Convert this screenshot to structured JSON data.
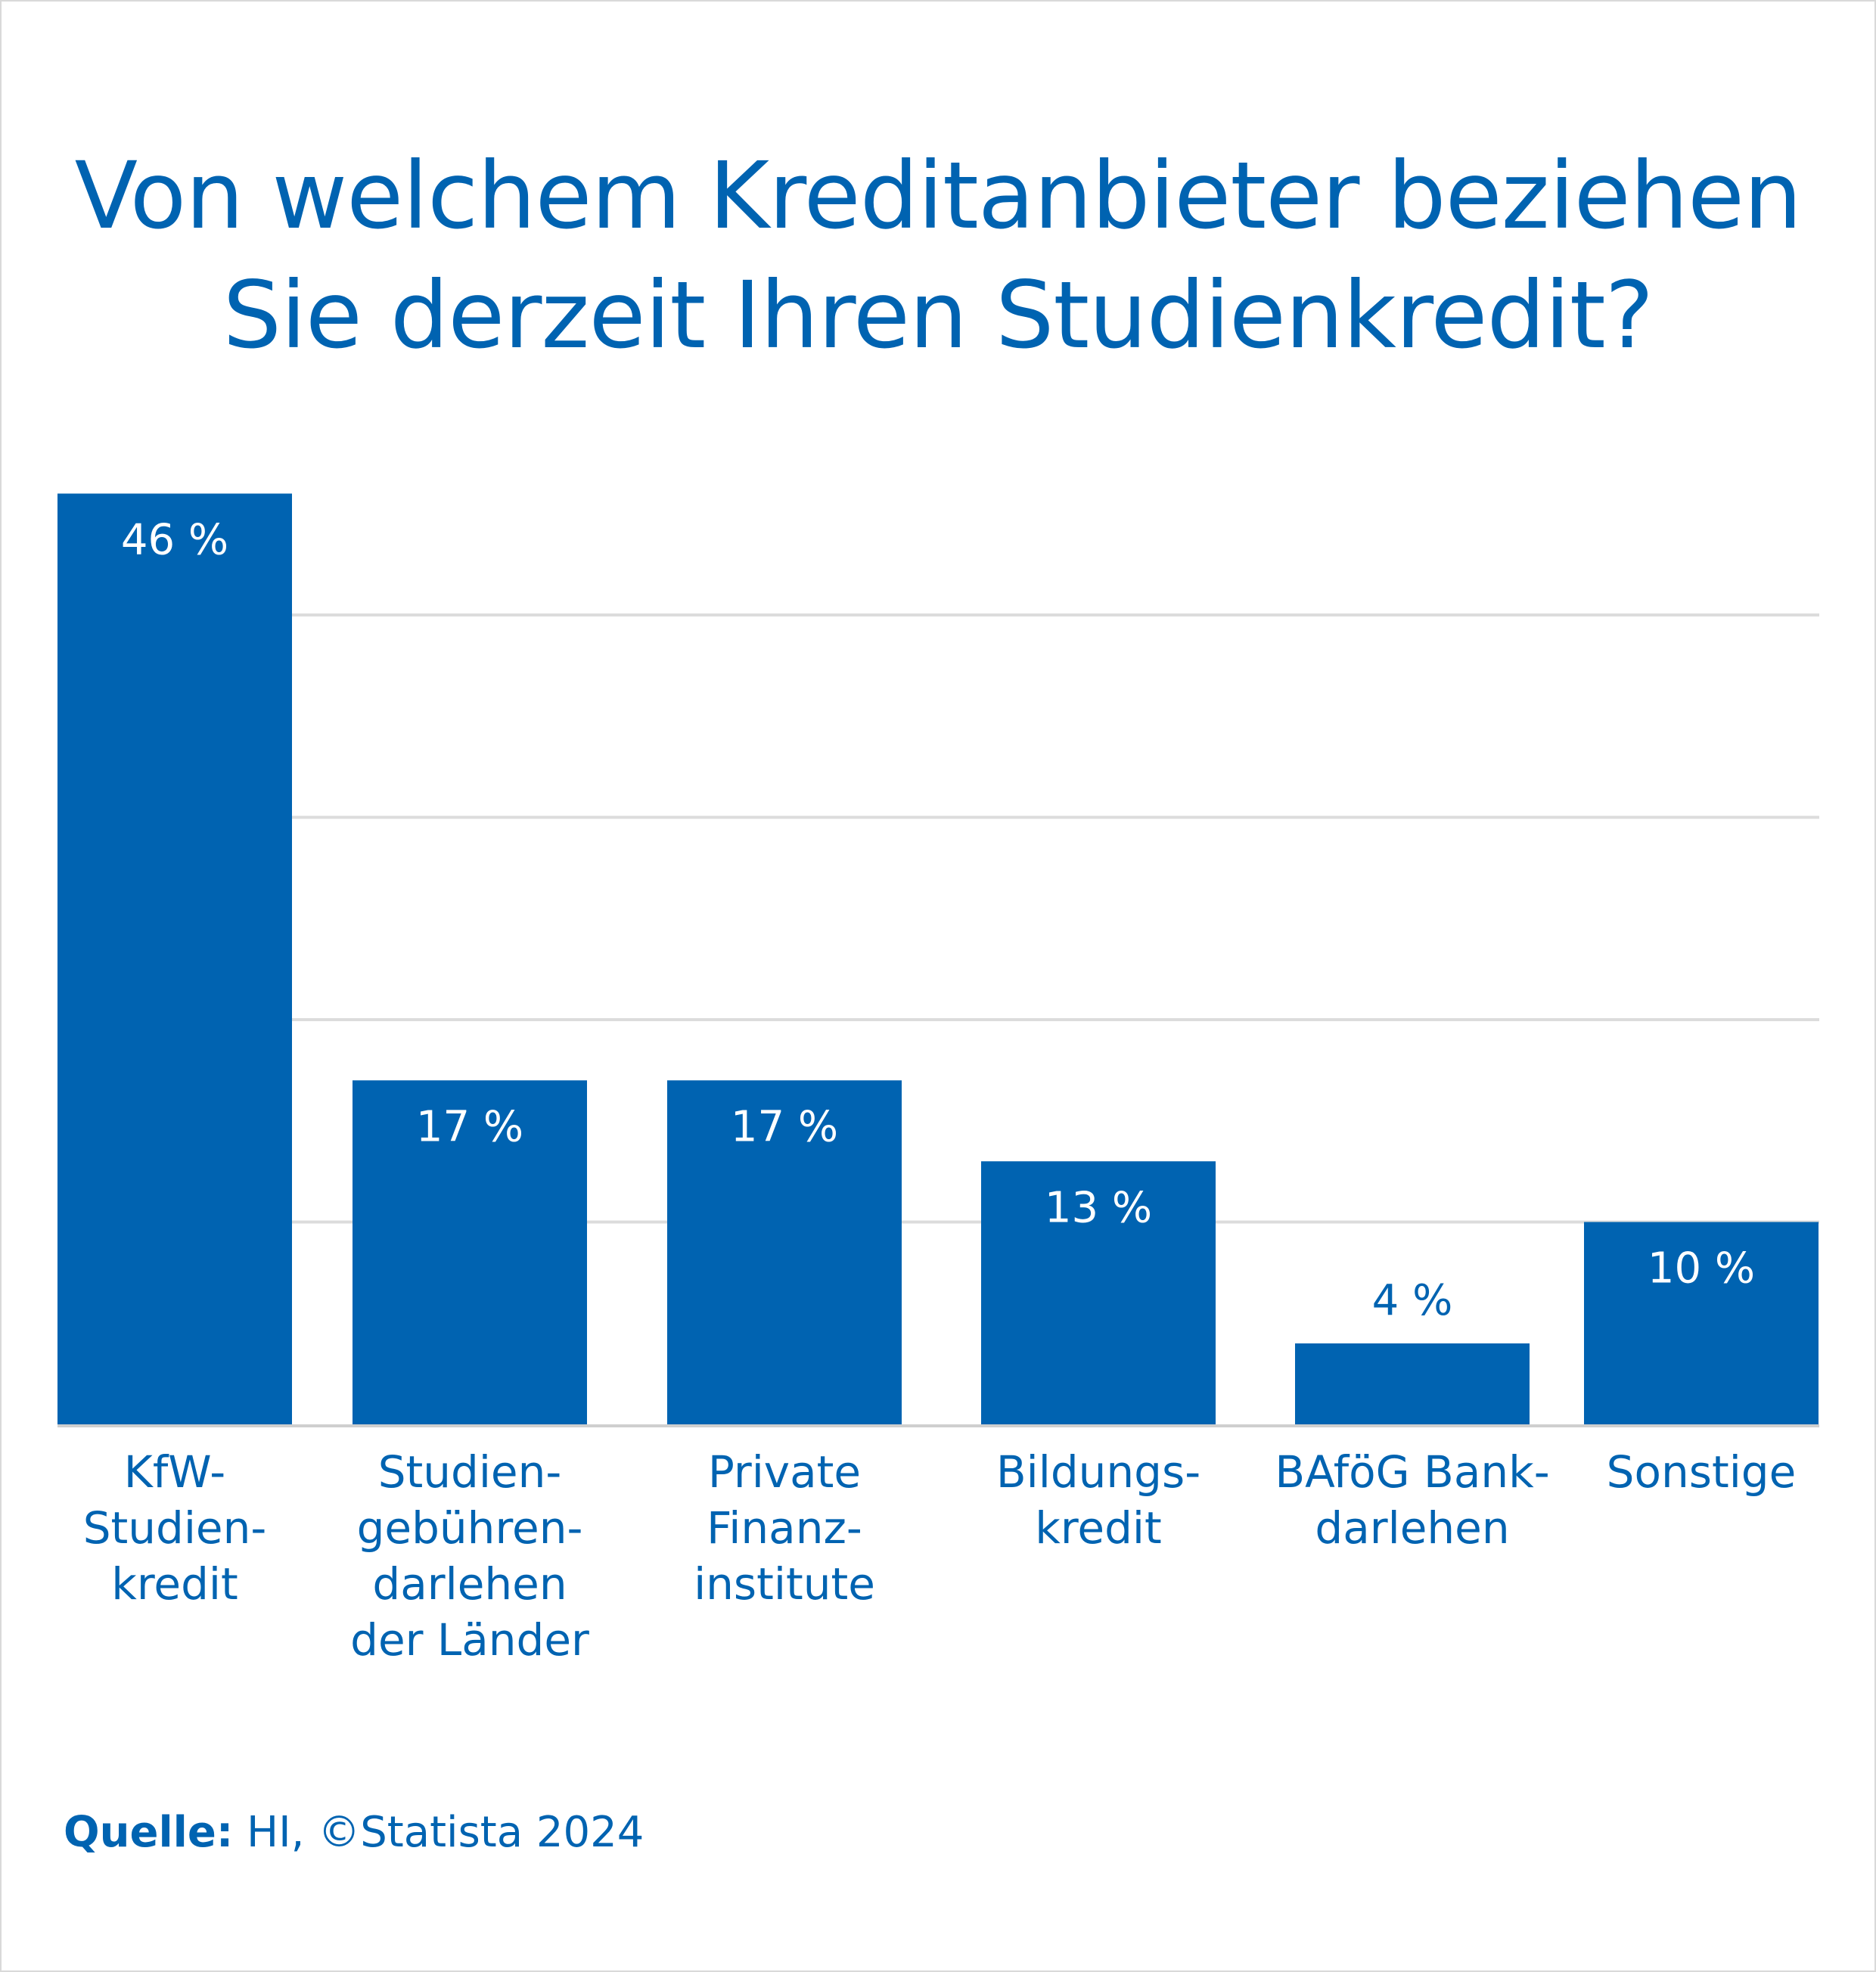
{
  "chart_data": {
    "type": "bar",
    "title_lines": [
      "Von welchem Kreditanbieter beziehen",
      "Sie derzeit Ihren Studienkredit?"
    ],
    "categories": [
      [
        "KfW-",
        "Studien-",
        "kredit"
      ],
      [
        "Studien-",
        "gebühren-",
        "darlehen",
        "der Länder"
      ],
      [
        "Private",
        "Finanz-",
        "institute"
      ],
      [
        "Bildungs-",
        "kredit"
      ],
      [
        "BAföG Bank-",
        "darlehen"
      ],
      [
        "Sonstige"
      ]
    ],
    "values": [
      46,
      17,
      17,
      13,
      4,
      10
    ],
    "value_labels": [
      "46 %",
      "17 %",
      "17 %",
      "13 %",
      "4 %",
      "10 %"
    ],
    "ylim": [
      0,
      50
    ],
    "gridlines": [
      10,
      20,
      30,
      40
    ],
    "grid": true,
    "bar_color": "#0063b1"
  },
  "source": {
    "label": "Quelle:",
    "text": "HI, ©Statista 2024"
  }
}
